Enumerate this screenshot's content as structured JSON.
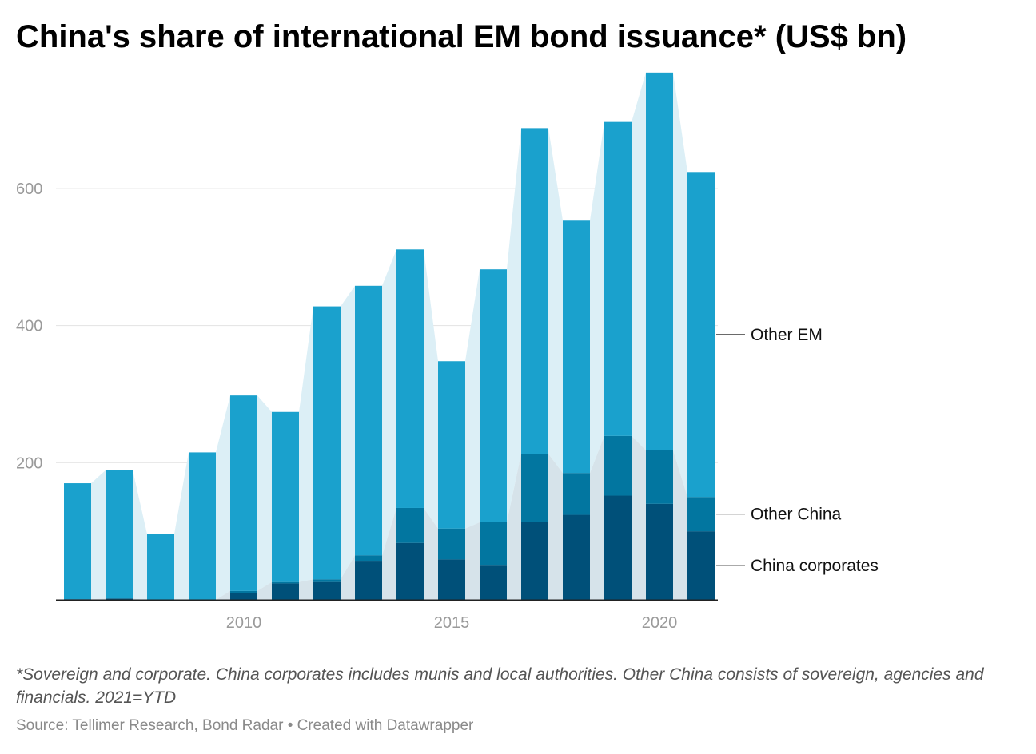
{
  "title": "China's share of international EM bond issuance* (US$ bn)",
  "note": "*Sovereign and corporate. China corporates includes munis and local authorities. Other China consists of sovereign, agencies and financials. 2021=YTD",
  "source": "Source: Tellimer Research, Bond Radar • Created with Datawrapper",
  "colors": {
    "other_em": "#1aa1cd",
    "other_china": "#0276a0",
    "china_corporates": "#005079",
    "area_light": "#dceff6",
    "area_dark": "#d6e3ea",
    "gridline": "#e2e2e2",
    "axis": "#222222"
  },
  "chart_data": {
    "type": "bar",
    "stacked": true,
    "x": [
      2006,
      2007,
      2008,
      2009,
      2010,
      2011,
      2012,
      2013,
      2014,
      2015,
      2016,
      2017,
      2018,
      2019,
      2020,
      2021
    ],
    "x_ticks": [
      2010,
      2015,
      2020
    ],
    "y_ticks": [
      200,
      400,
      600
    ],
    "ylim": [
      0,
      770
    ],
    "grid": true,
    "legend": "right, inline labels",
    "series": [
      {
        "name": "China corporates",
        "values": [
          1,
          2,
          0,
          0,
          10,
          24,
          26,
          57,
          83,
          59,
          51,
          114,
          124,
          152,
          140,
          100
        ]
      },
      {
        "name": "Other China",
        "values": [
          0,
          0,
          0,
          0,
          3,
          2,
          4,
          8,
          51,
          45,
          62,
          99,
          61,
          87,
          78,
          50
        ]
      },
      {
        "name": "Other EM",
        "values": [
          169,
          187,
          96,
          215,
          285,
          248,
          398,
          393,
          377,
          244,
          369,
          475,
          368,
          458,
          551,
          474
        ]
      }
    ]
  }
}
